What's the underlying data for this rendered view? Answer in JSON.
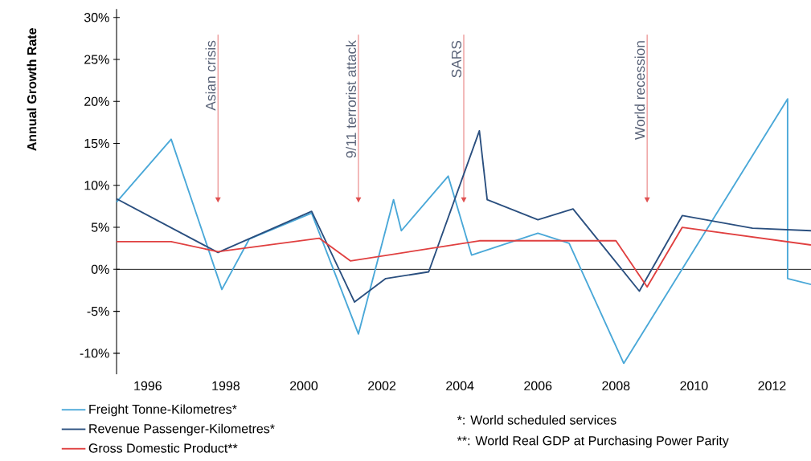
{
  "chart_data": {
    "type": "line",
    "ylabel": "Annual Growth Rate",
    "xlim": [
      1995.2,
      2013
    ],
    "xticks": [
      1996,
      1998,
      2000,
      2002,
      2004,
      2006,
      2008,
      2010,
      2012
    ],
    "ylim": [
      -12.5,
      31
    ],
    "yticks": [
      {
        "value": -10,
        "label": "-10%"
      },
      {
        "value": -5,
        "label": "-5%"
      },
      {
        "value": 0,
        "label": "0%"
      },
      {
        "value": 5,
        "label": "5%"
      },
      {
        "value": 10,
        "label": "10%"
      },
      {
        "value": 15,
        "label": "15%"
      },
      {
        "value": 20,
        "label": "20%"
      },
      {
        "value": 25,
        "label": "25%"
      },
      {
        "value": 30,
        "label": "30%"
      }
    ],
    "grid": false,
    "legend": "bottom left",
    "marker": "none",
    "line_style": "solid",
    "series": [
      {
        "name": "Freight Tonne-Kilometres*",
        "color": "#4aa8d8",
        "x": [
          1995.2,
          1996.6,
          1997.9,
          1998.6,
          2000.2,
          2001.4,
          2002.3,
          2002.5,
          2003.7,
          2004.3,
          2006.0,
          2006.8,
          2008.2,
          2012.4,
          2012.4,
          2013.0
        ],
        "values": [
          8.0,
          15.5,
          -2.4,
          3.6,
          6.7,
          -7.7,
          8.3,
          4.6,
          11.1,
          1.7,
          4.3,
          3.1,
          -11.2,
          20.3,
          -1.1,
          -1.8
        ]
      },
      {
        "name": "Revenue Passenger-Kilometres*",
        "color": "#2a4f7f",
        "x": [
          1995.2,
          1997.8,
          2000.2,
          2001.3,
          2002.1,
          2003.2,
          2004.5,
          2004.7,
          2006.0,
          2006.9,
          2008.6,
          2009.7,
          2011.5,
          2013.0
        ],
        "values": [
          8.4,
          2.0,
          6.9,
          -3.9,
          -1.1,
          -0.3,
          16.5,
          8.3,
          5.9,
          7.2,
          -2.6,
          6.4,
          4.9,
          4.6
        ]
      },
      {
        "name": "Gross Domestic Product**",
        "color": "#e04040",
        "x": [
          1995.2,
          1996.6,
          1997.8,
          2000.4,
          2001.2,
          2004.5,
          2008.0,
          2008.8,
          2009.7,
          2013.0
        ],
        "values": [
          3.3,
          3.3,
          2.1,
          3.7,
          1.0,
          3.4,
          3.4,
          -2.1,
          5.0,
          2.9
        ]
      }
    ],
    "ref_lines": [
      {
        "axis": "y",
        "value": 0,
        "color": "#000000"
      },
      {
        "axis": "x",
        "value": 1997.8,
        "label": "Asian crisis",
        "color": "#e05050"
      },
      {
        "axis": "x",
        "value": 2001.4,
        "label": "9/11 terrorist attack",
        "color": "#e05050"
      },
      {
        "axis": "x",
        "value": 2004.1,
        "label": "SARS",
        "color": "#e05050"
      },
      {
        "axis": "x",
        "value": 2008.8,
        "label": "World recession",
        "color": "#e05050"
      }
    ],
    "annotations": [
      "*: World scheduled services",
      "**: World Real GDP at Purchasing Power Parity"
    ]
  }
}
